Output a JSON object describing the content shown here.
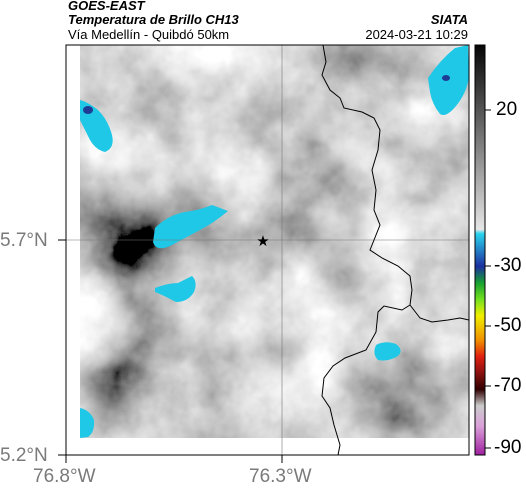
{
  "header": {
    "satellite": "GOES-EAST",
    "product": "Temperatura de Brillo CH13",
    "place": "Vía Medellín - Quibdó 50km",
    "org": "SIATA",
    "timestamp": "2024-03-21 10:29"
  },
  "map": {
    "lon_ticks": [
      "76.8°W",
      "76.3°W"
    ],
    "lat_ticks": [
      "5.7°N",
      "5.2°N"
    ],
    "marker": "star",
    "grid": true
  },
  "colorbar": {
    "ticks": [
      "20",
      "-30",
      "-50",
      "-70",
      "-90"
    ]
  },
  "colors": {
    "cold_cloud": "#1ec8e6",
    "cold_core": "#1e3c96",
    "border": "#000000"
  }
}
